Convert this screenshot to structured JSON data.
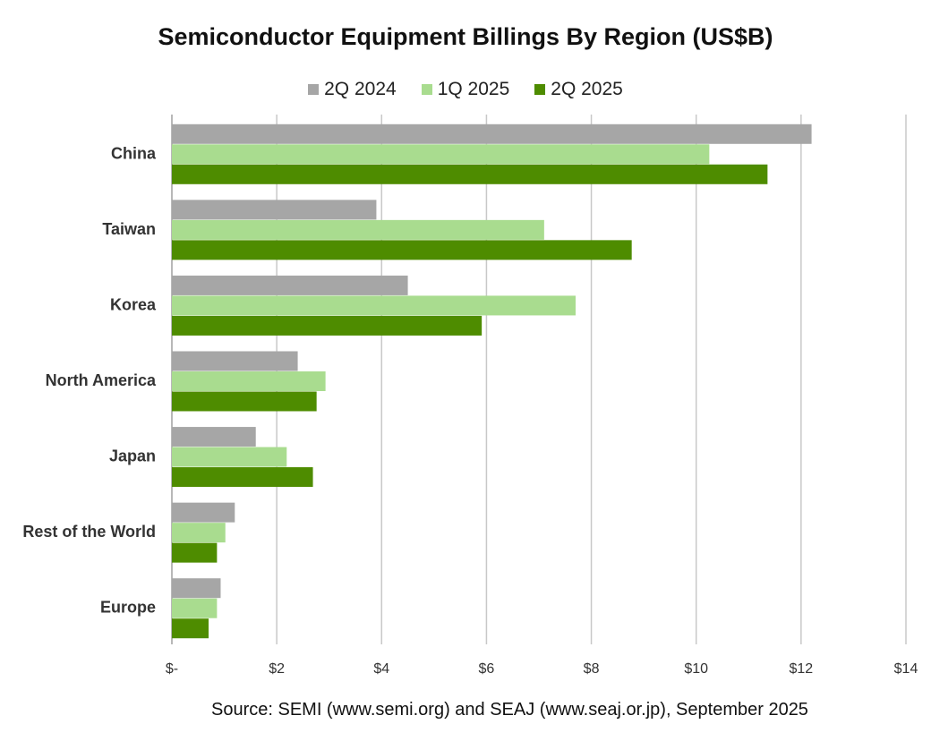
{
  "chart_data": {
    "type": "bar",
    "orientation": "horizontal",
    "title": "Semiconductor Equipment Billings By Region (US$B)",
    "categories": [
      "China",
      "Taiwan",
      "Korea",
      "North America",
      "Japan",
      "Rest of the World",
      "Europe"
    ],
    "series": [
      {
        "name": "2Q 2024",
        "color": "#a6a6a6",
        "values": [
          12.2,
          3.9,
          4.5,
          2.4,
          1.6,
          1.2,
          0.93
        ]
      },
      {
        "name": "1Q 2025",
        "color": "#a9dc8f",
        "values": [
          10.25,
          7.1,
          7.7,
          2.93,
          2.19,
          1.02,
          0.86
        ]
      },
      {
        "name": "2Q 2025",
        "color": "#4e8c00",
        "values": [
          11.36,
          8.77,
          5.91,
          2.76,
          2.69,
          0.86,
          0.7
        ]
      }
    ],
    "xlim": [
      0,
      14
    ],
    "xticks": [
      0,
      2,
      4,
      6,
      8,
      10,
      12,
      14
    ],
    "xtick_labels": [
      "$-",
      "$2",
      "$4",
      "$6",
      "$8",
      "$10",
      "$12",
      "$14"
    ],
    "grid": "vertical",
    "legend_position": "top"
  },
  "source": "Source: SEMI (www.semi.org) and SEAJ (www.seaj.or.jp), September 2025"
}
